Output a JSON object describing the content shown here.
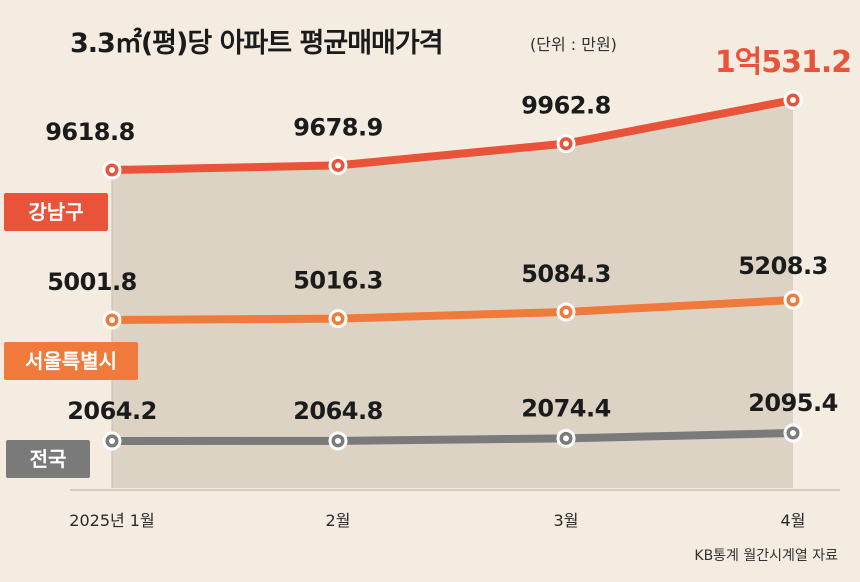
{
  "chart_data": {
    "type": "line",
    "title": "3.3㎡(평)당 아파트 평균매매가격",
    "unit": "(단위 : 만원)",
    "source": "KB통계 월간시계열 자료",
    "categories": [
      "2025년 1월",
      "2월",
      "3월",
      "4월"
    ],
    "series": [
      {
        "name": "강남구",
        "color": "#e8533a",
        "values": [
          9618.8,
          9678.9,
          9962.8,
          10531.2
        ],
        "labels": [
          "9618.8",
          "9678.9",
          "9962.8",
          "1억531.2"
        ]
      },
      {
        "name": "서울특별시",
        "color": "#ef7a3b",
        "values": [
          5001.8,
          5016.3,
          5084.3,
          5208.3
        ],
        "labels": [
          "5001.8",
          "5016.3",
          "5084.3",
          "5208.3"
        ]
      },
      {
        "name": "전국",
        "color": "#7a7a7a",
        "values": [
          2064.2,
          2064.8,
          2074.4,
          2095.4
        ],
        "labels": [
          "2064.2",
          "2064.8",
          "2074.4",
          "2095.4"
        ]
      }
    ],
    "colors": {
      "background": "#f4ece1",
      "area_fill": "#ddd3c5",
      "highlight_label": "#e8533a"
    }
  }
}
